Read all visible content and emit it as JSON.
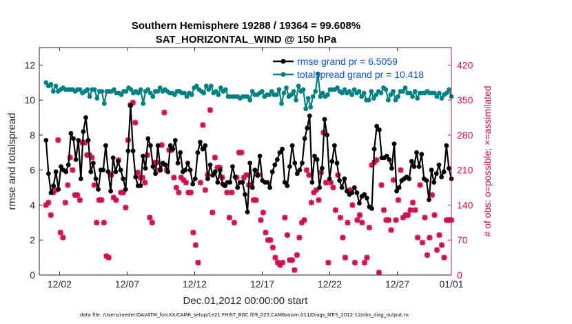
{
  "chart_data": {
    "type": "line",
    "title": "Southern Hemisphere 19288 / 19364 = 99.608%",
    "subtitle": "SAT_HORIZONTAL_WIND @ 150 hPa",
    "xlabel": "Dec.01,2012 00:00:00 start",
    "ylabel": "rmse and totalspread",
    "ylabel_right": "# of obs: o=possible; ×=assimilated",
    "footer": "data file: /Users/raeder/DAI/ATM_forcXX/CAM6_setup/f.e21.FHIST_BGC.f09_025.CAM6assim.011/Diags_NTrS_2012-12/obs_diag_output.nc",
    "xlim": [
      0.5,
      31.0
    ],
    "ylim": [
      0,
      13
    ],
    "ylim_right": [
      0,
      455
    ],
    "xticks": [
      {
        "value": 2,
        "label": "12/02"
      },
      {
        "value": 7,
        "label": "12/07"
      },
      {
        "value": 12,
        "label": "12/12"
      },
      {
        "value": 17,
        "label": "12/17"
      },
      {
        "value": 22,
        "label": "12/22"
      },
      {
        "value": 27,
        "label": "12/27"
      },
      {
        "value": 31,
        "label": "01/01"
      }
    ],
    "yticks": [
      {
        "value": 0,
        "label": "0"
      },
      {
        "value": 2,
        "label": "2"
      },
      {
        "value": 4,
        "label": "4"
      },
      {
        "value": 6,
        "label": "6"
      },
      {
        "value": 8,
        "label": "8"
      },
      {
        "value": 10,
        "label": "10"
      },
      {
        "value": 12,
        "label": "12"
      }
    ],
    "yticks_right": [
      {
        "value": 0,
        "label": "0"
      },
      {
        "value": 70,
        "label": "70"
      },
      {
        "value": 140,
        "label": "140"
      },
      {
        "value": 210,
        "label": "210"
      },
      {
        "value": 280,
        "label": "280"
      },
      {
        "value": 350,
        "label": "350"
      },
      {
        "value": 420,
        "label": "420"
      }
    ],
    "legend": {
      "position": "top-right"
    },
    "series": [
      {
        "name": "rmse grand pr = 6.5059",
        "axis": "left",
        "color": "#000000",
        "marker": "dot",
        "values": [
          7.7,
          5.8,
          4.7,
          5.1,
          5.9,
          4.9,
          6.2,
          6.0,
          5.9,
          6.3,
          8.1,
          7.8,
          6.6,
          7.7,
          5.5,
          8.2,
          9.0,
          7.7,
          5.9,
          6.4,
          5.5,
          4.9,
          6.0,
          6.0,
          7.4,
          5.9,
          4.8,
          6.7,
          5.9,
          6.5,
          6.0,
          5.5,
          4.9,
          7.1,
          9.7,
          7.1,
          5.6,
          5.1,
          5.1,
          6.8,
          6.1,
          7.8,
          7.4,
          6.2,
          5.8,
          7.4,
          6.0,
          6.4,
          6.3,
          5.9,
          7.4,
          7.2,
          7.7,
          6.4,
          7.0,
          5.9,
          6.0,
          6.4,
          6.0,
          5.2,
          5.5,
          7.0,
          7.6,
          7.2,
          7.4,
          5.5,
          6.3,
          5.7,
          5.9,
          5.3,
          6.0,
          5.2,
          5.1,
          5.3,
          5.3,
          6.2,
          5.6,
          5.0,
          5.3,
          5.3,
          4.6,
          3.6,
          6.4,
          5.0,
          6.0,
          5.7,
          6.8,
          5.4,
          5.3,
          5.3,
          5.0,
          5.9,
          6.3,
          6.6,
          7.0,
          7.2,
          5.3,
          5.1,
          6.2,
          7.4,
          6.4,
          5.8,
          6.0,
          6.4,
          7.8,
          8.4,
          9.1,
          5.3,
          6.8,
          6.6,
          5.0,
          6.1,
          8.9,
          8.0,
          5.5,
          6.5,
          7.4,
          6.4,
          5.4,
          5.0,
          5.5,
          4.8,
          4.6,
          4.7,
          5.0,
          4.7,
          4.1,
          4.5,
          4.6,
          4.4,
          3.9,
          3.8,
          7.2,
          8.5,
          8.3,
          6.7,
          6.7,
          6.8,
          6.6,
          6.1,
          7.5,
          4.8,
          5.0,
          5.4,
          5.5,
          5.6,
          5.5,
          6.5,
          6.2,
          7.0,
          6.2,
          6.9,
          5.5,
          5.4,
          4.3,
          6.0,
          5.3,
          5.8,
          6.3,
          5.6,
          5.9,
          7.4,
          6.1,
          5.5
        ]
      },
      {
        "name": "totalspread grand pr = 10.418",
        "axis": "left",
        "color": "#008080",
        "marker": "dot",
        "values": [
          11.0,
          10.8,
          10.9,
          10.5,
          10.8,
          10.5,
          10.6,
          10.7,
          10.6,
          10.6,
          10.6,
          10.6,
          10.5,
          10.6,
          10.6,
          10.4,
          10.5,
          10.6,
          10.2,
          10.6,
          10.6,
          10.1,
          10.5,
          10.5,
          9.8,
          10.5,
          10.5,
          10.5,
          10.6,
          10.4,
          10.4,
          10.3,
          10.5,
          10.5,
          10.7,
          10.6,
          10.4,
          10.5,
          10.4,
          10.6,
          9.8,
          10.5,
          10.6,
          10.4,
          10.2,
          10.5,
          10.5,
          10.7,
          10.5,
          10.6,
          10.5,
          10.4,
          10.4,
          10.3,
          10.5,
          10.5,
          10.4,
          10.4,
          10.2,
          10.4,
          10.3,
          10.7,
          10.8,
          10.6,
          10.5,
          10.4,
          10.8,
          10.6,
          10.8,
          10.4,
          10.5,
          10.3,
          10.7,
          10.5,
          10.6,
          10.2,
          10.2,
          10.2,
          10.2,
          10.2,
          10.1,
          10.2,
          10.2,
          10.2,
          10.0,
          10.5,
          10.3,
          10.3,
          10.4,
          10.5,
          10.2,
          10.3,
          10.3,
          10.5,
          10.3,
          10.3,
          10.6,
          9.8,
          10.4,
          10.7,
          10.2,
          10.3,
          10.5,
          10.0,
          10.8,
          10.5,
          10.6,
          9.5,
          10.1,
          9.6,
          10.2,
          10.5,
          11.5,
          10.2,
          10.4,
          10.2,
          10.3,
          10.6,
          10.6,
          10.6,
          10.7,
          10.5,
          10.4,
          10.6,
          10.4,
          10.5,
          10.3,
          10.6,
          10.4,
          10.5,
          10.2,
          10.4,
          10.0,
          10.0,
          10.5,
          10.1,
          10.3,
          10.5,
          10.4,
          10.7,
          10.6,
          10.0,
          10.3,
          10.5,
          10.0,
          10.2,
          10.5,
          10.5,
          10.7,
          10.4,
          10.4,
          10.2,
          10.5,
          10.1,
          10.4,
          10.4,
          10.4,
          10.5,
          10.4,
          10.4,
          10.4,
          10.2,
          10.4,
          10.1,
          10.3,
          10.4,
          10.6,
          10.2
        ]
      },
      {
        "name": "assimilated observations",
        "axis": "right",
        "color": "#d0104c",
        "marker": "cross",
        "values": [
          140,
          145,
          120,
          165,
          170,
          270,
          85,
          75,
          145,
          180,
          235,
          210,
          160,
          160,
          150,
          265,
          265,
          240,
          240,
          235,
          180,
          105,
          150,
          150,
          105,
          38,
          35,
          200,
          155,
          150,
          230,
          165,
          165,
          135,
          270,
          340,
          345,
          305,
          205,
          195,
          195,
          185,
          240,
          115,
          105,
          225,
          225,
          210,
          260,
          325,
          210,
          250,
          250,
          195,
          175,
          165,
          195,
          190,
          185,
          165,
          165,
          85,
          60,
          25,
          185,
          300,
          170,
          200,
          330,
          125,
          235,
          215,
          215,
          195,
          180,
          165,
          115,
          165,
          105,
          195,
          245,
          245,
          195,
          200,
          180,
          180,
          150,
          150,
          200,
          110,
          125,
          85,
          70,
          70,
          55,
          35,
          25,
          20,
          25,
          115,
          80,
          30,
          30,
          10,
          40,
          75,
          105,
          110,
          210,
          200,
          145,
          165,
          170,
          150,
          205,
          285,
          185,
          25,
          185,
          175,
          130,
          200,
          115,
          75,
          35,
          105,
          170,
          140,
          25,
          110,
          120,
          105,
          25,
          35,
          95,
          220,
          225,
          230,
          5,
          180,
          130,
          110,
          110,
          90,
          190,
          110,
          150,
          210,
          115,
          120,
          120,
          130,
          145,
          130,
          75,
          180,
          65,
          115,
          40,
          75,
          160,
          120,
          50,
          80,
          60,
          35,
          110,
          110,
          110
        ]
      }
    ]
  }
}
